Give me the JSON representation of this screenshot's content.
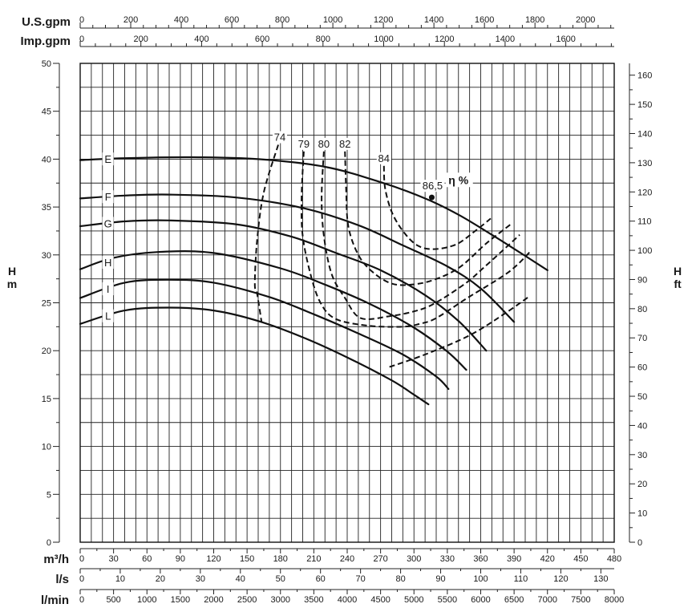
{
  "chart_data": {
    "type": "line",
    "top_axes": [
      {
        "label": "U.S.gpm",
        "ticks": [
          "0",
          "200",
          "400",
          "600",
          "800",
          "1000",
          "1200",
          "1400",
          "1600",
          "1800",
          "2000"
        ],
        "values": [
          0,
          200,
          400,
          600,
          800,
          1000,
          1200,
          1400,
          1600,
          1800,
          2000
        ],
        "m3h_per_unit": 0.2271
      },
      {
        "label": "Imp.gpm",
        "ticks": [
          "0",
          "200",
          "400",
          "600",
          "800",
          "1000",
          "1200",
          "1400",
          "1600"
        ],
        "values": [
          0,
          200,
          400,
          600,
          800,
          1000,
          1200,
          1400,
          1600
        ],
        "m3h_per_unit": 0.2728
      }
    ],
    "bottom_axes": [
      {
        "label": "m³/h",
        "ticks": [
          "0",
          "30",
          "60",
          "90",
          "120",
          "150",
          "180",
          "210",
          "240",
          "270",
          "300",
          "330",
          "360",
          "390",
          "420",
          "450",
          "480"
        ],
        "values": [
          0,
          30,
          60,
          90,
          120,
          150,
          180,
          210,
          240,
          270,
          300,
          330,
          360,
          390,
          420,
          450,
          480
        ],
        "m3h_per_unit": 1
      },
      {
        "label": "l/s",
        "ticks": [
          "0",
          "10",
          "20",
          "30",
          "40",
          "50",
          "60",
          "70",
          "80",
          "90",
          "100",
          "110",
          "120",
          "130"
        ],
        "values": [
          0,
          10,
          20,
          30,
          40,
          50,
          60,
          70,
          80,
          90,
          100,
          110,
          120,
          130
        ],
        "m3h_per_unit": 3.6
      },
      {
        "label": "l/min",
        "ticks": [
          "0",
          "500",
          "1000",
          "1500",
          "2000",
          "2500",
          "3000",
          "3500",
          "4000",
          "4500",
          "5000",
          "5500",
          "6000",
          "6500",
          "7000",
          "7500",
          "8000"
        ],
        "values": [
          0,
          500,
          1000,
          1500,
          2000,
          2500,
          3000,
          3500,
          4000,
          4500,
          5000,
          5500,
          6000,
          6500,
          7000,
          7500,
          8000
        ],
        "m3h_per_unit": 0.06
      }
    ],
    "left_axis": {
      "label_top": "H",
      "label_bottom": "m",
      "ticks": [
        "0",
        "5",
        "10",
        "15",
        "20",
        "25",
        "30",
        "35",
        "40",
        "45",
        "50"
      ],
      "values": [
        0,
        5,
        10,
        15,
        20,
        25,
        30,
        35,
        40,
        45,
        50
      ],
      "ylim": [
        0,
        50
      ]
    },
    "right_axis": {
      "label_top": "H",
      "label_bottom": "ft",
      "ticks": [
        "0",
        "10",
        "20",
        "30",
        "40",
        "50",
        "60",
        "70",
        "80",
        "90",
        "100",
        "110",
        "120",
        "130",
        "140",
        "150",
        "160"
      ],
      "values": [
        0,
        10,
        20,
        30,
        40,
        50,
        60,
        70,
        80,
        90,
        100,
        110,
        120,
        130,
        140,
        150,
        160
      ],
      "m_per_unit": 0.3048
    },
    "xlim": [
      0,
      480
    ],
    "grid": true,
    "series": [
      {
        "name": "E",
        "x": [
          0,
          40,
          100,
          160,
          220,
          270,
          310,
          340,
          370,
          400,
          420
        ],
        "y": [
          39.9,
          40.1,
          40.2,
          40.0,
          39.2,
          37.6,
          35.9,
          34.2,
          32.1,
          29.9,
          28.4
        ]
      },
      {
        "name": "F",
        "x": [
          0,
          40,
          80,
          140,
          200,
          250,
          290,
          330,
          360,
          390
        ],
        "y": [
          35.9,
          36.2,
          36.3,
          36.0,
          34.9,
          33.1,
          31.0,
          28.8,
          26.5,
          23.0
        ]
      },
      {
        "name": "G",
        "x": [
          0,
          40,
          80,
          140,
          190,
          230,
          270,
          310,
          340,
          365
        ],
        "y": [
          33.0,
          33.5,
          33.6,
          33.2,
          31.9,
          30.2,
          28.4,
          25.8,
          23.1,
          20.0
        ]
      },
      {
        "name": "H",
        "x": [
          0,
          30,
          70,
          120,
          180,
          220,
          260,
          300,
          330,
          347
        ],
        "y": [
          28.5,
          29.7,
          30.3,
          30.2,
          28.6,
          26.9,
          24.9,
          22.4,
          19.9,
          18.0
        ]
      },
      {
        "name": "I",
        "x": [
          0,
          40,
          80,
          120,
          170,
          210,
          250,
          290,
          320,
          331
        ],
        "y": [
          25.5,
          27.1,
          27.4,
          27.1,
          25.6,
          23.8,
          21.8,
          19.6,
          17.3,
          16.0
        ]
      },
      {
        "name": "L",
        "x": [
          0,
          40,
          80,
          120,
          160,
          200,
          240,
          280,
          300,
          313
        ],
        "y": [
          22.8,
          24.2,
          24.5,
          24.2,
          23.1,
          21.4,
          19.3,
          16.9,
          15.4,
          14.4
        ]
      }
    ],
    "efficiency_curves": [
      {
        "label": "74",
        "x": [
          178,
          165,
          159,
          157,
          159,
          163
        ],
        "y": [
          41.5,
          36.5,
          31.5,
          27.0,
          26.0,
          23.0
        ]
      },
      {
        "label": "79",
        "x": [
          201,
          199,
          200,
          207,
          216,
          230,
          260,
          290,
          305,
          320,
          348,
          385,
          405
        ],
        "y": [
          40.8,
          36,
          32,
          28,
          25,
          23.3,
          22.6,
          22.5,
          22.8,
          23.4,
          25.5,
          28.2,
          30.4
        ]
      },
      {
        "label": "80",
        "x": [
          219,
          217,
          219,
          226,
          238,
          252,
          278,
          300,
          318,
          346,
          362,
          383,
          395
        ],
        "y": [
          40.8,
          36,
          32,
          28,
          25.5,
          23.4,
          23.6,
          24.1,
          24.9,
          27.0,
          28.6,
          30.8,
          32.1
        ]
      },
      {
        "label": "82",
        "x": [
          238,
          239,
          241,
          250,
          263,
          280,
          298,
          318,
          341,
          365,
          387
        ],
        "y": [
          40.8,
          37,
          33,
          30,
          28.2,
          27.0,
          26.9,
          27.4,
          28.7,
          31.2,
          33.2
        ]
      },
      {
        "label": "84",
        "x": [
          273,
          274,
          280,
          290,
          303,
          318,
          338,
          355,
          369
        ],
        "y": [
          39.3,
          37,
          34.5,
          32.5,
          31.0,
          30.6,
          31.1,
          32.5,
          33.8
        ]
      },
      {
        "label": "",
        "x": [
          278,
          310,
          350,
          382,
          404
        ],
        "y": [
          18.3,
          19.6,
          21.6,
          23.9,
          25.7
        ]
      }
    ],
    "efficiency_unit_label": "η %",
    "best_point": {
      "label": "86,5",
      "x": 316,
      "y": 36.0
    },
    "curve_labels": [
      "E",
      "F",
      "G",
      "H",
      "I",
      "L"
    ],
    "top_labels": {
      "efficiency": [
        "74",
        "79",
        "80",
        "82",
        "84"
      ]
    }
  }
}
